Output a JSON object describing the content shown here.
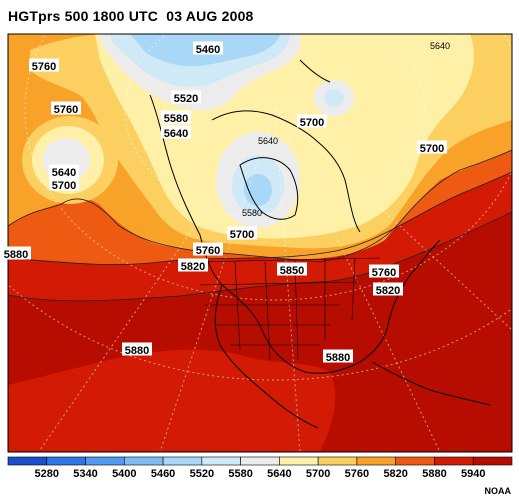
{
  "title": "HGTprs 500 1800 UTC  03 AUG 2008",
  "credit": "NOAA",
  "palette": {
    "c5280": "#1a4fd0",
    "c5340": "#2f77e8",
    "c5400": "#4f9cf2",
    "c5460": "#7fbcf7",
    "c5520": "#a8d7f7",
    "c5580": "#cfe9f7",
    "c5640": "#ececec",
    "c5700": "#fff0a8",
    "c5760": "#fcd060",
    "c5820": "#f9a22a",
    "c5880": "#ef5a12",
    "c5940": "#d21a04",
    "c6000": "#b70d00"
  },
  "legend": {
    "labels": [
      "5280",
      "5340",
      "5400",
      "5460",
      "5520",
      "5580",
      "5640",
      "5700",
      "5760",
      "5820",
      "5880",
      "5940"
    ]
  },
  "contour_labels": [
    {
      "id": "5460-north",
      "text": "5460"
    },
    {
      "id": "5640-ne",
      "text": "5640"
    },
    {
      "id": "5760-nw",
      "text": "5760"
    },
    {
      "id": "5760-pac",
      "text": "5760"
    },
    {
      "id": "5520-arctic",
      "text": "5520"
    },
    {
      "id": "5580-arctic",
      "text": "5580"
    },
    {
      "id": "5640-arctic",
      "text": "5640"
    },
    {
      "id": "5700-hudson",
      "text": "5700"
    },
    {
      "id": "5700-east",
      "text": "5700"
    },
    {
      "id": "5640-pac",
      "text": "5640"
    },
    {
      "id": "5700-pac",
      "text": "5700"
    },
    {
      "id": "5640-hudson",
      "text": "5640"
    },
    {
      "id": "5580-hudson",
      "text": "5580"
    },
    {
      "id": "5700-lakes",
      "text": "5700"
    },
    {
      "id": "5760-west",
      "text": "5760"
    },
    {
      "id": "5880-west",
      "text": "5880"
    },
    {
      "id": "5820-west",
      "text": "5820"
    },
    {
      "id": "5850-center",
      "text": "5850"
    },
    {
      "id": "5760-east",
      "text": "5760"
    },
    {
      "id": "5820-east",
      "text": "5820"
    },
    {
      "id": "5880-sw",
      "text": "5880"
    },
    {
      "id": "5880-gulf",
      "text": "5880"
    }
  ]
}
